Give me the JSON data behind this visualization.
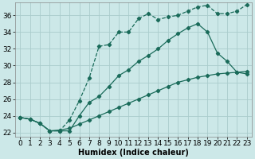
{
  "xlabel": "Humidex (Indice chaleur)",
  "background_color": "#cce8e8",
  "grid_color": "#aacccc",
  "line_color": "#1a6b5a",
  "xlim": [
    -0.5,
    23.5
  ],
  "ylim": [
    21.5,
    37.5
  ],
  "xticks": [
    0,
    1,
    2,
    3,
    4,
    5,
    6,
    7,
    8,
    9,
    10,
    11,
    12,
    13,
    14,
    15,
    16,
    17,
    18,
    19,
    20,
    21,
    22,
    23
  ],
  "yticks": [
    22,
    24,
    26,
    28,
    30,
    32,
    34,
    36
  ],
  "series1_x": [
    0,
    1,
    2,
    3,
    4,
    5,
    6,
    7,
    8,
    9,
    10,
    11,
    12,
    13,
    14,
    15,
    16,
    17,
    18,
    19,
    20,
    21,
    22,
    23
  ],
  "series1_y": [
    23.8,
    23.6,
    23.1,
    22.2,
    22.2,
    23.5,
    25.8,
    28.5,
    32.3,
    32.5,
    34.0,
    34.0,
    35.6,
    36.2,
    35.5,
    35.8,
    36.0,
    36.5,
    37.0,
    37.2,
    36.2,
    36.2,
    36.5,
    37.3
  ],
  "series2_x": [
    0,
    1,
    2,
    3,
    4,
    5,
    6,
    7,
    8,
    9,
    10,
    11,
    12,
    13,
    14,
    15,
    16,
    17,
    18,
    19,
    20,
    21,
    22,
    23
  ],
  "series2_y": [
    23.8,
    23.6,
    23.1,
    22.2,
    22.2,
    22.2,
    24.0,
    25.6,
    26.3,
    27.5,
    28.8,
    29.5,
    30.5,
    31.2,
    32.0,
    33.0,
    33.8,
    34.5,
    35.0,
    34.0,
    31.5,
    30.5,
    29.2,
    29.0
  ],
  "series3_x": [
    0,
    1,
    2,
    3,
    4,
    5,
    6,
    7,
    8,
    9,
    10,
    11,
    12,
    13,
    14,
    15,
    16,
    17,
    18,
    19,
    20,
    21,
    22,
    23
  ],
  "series3_y": [
    23.8,
    23.6,
    23.1,
    22.2,
    22.3,
    22.5,
    23.0,
    23.5,
    24.0,
    24.5,
    25.0,
    25.5,
    26.0,
    26.5,
    27.0,
    27.5,
    28.0,
    28.3,
    28.6,
    28.8,
    29.0,
    29.1,
    29.2,
    29.3
  ],
  "font_size": 6.5
}
